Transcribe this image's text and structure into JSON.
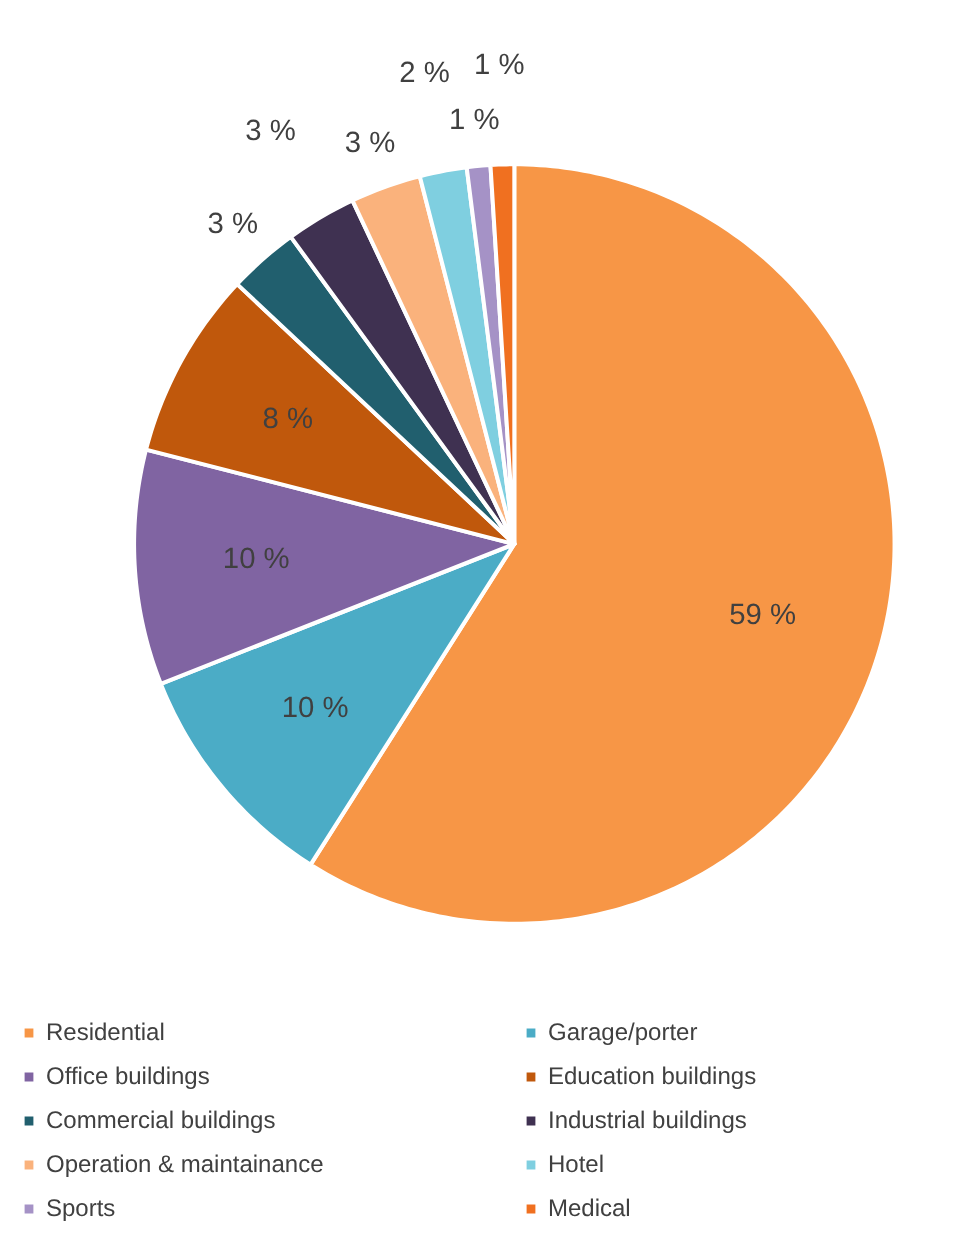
{
  "chart_data": {
    "type": "pie",
    "categories": [
      "Residential",
      "Garage/porter",
      "Office buildings",
      "Education buildings",
      "Commercial buildings",
      "Industrial buildings",
      "Operation & maintainance",
      "Hotel",
      "Sports",
      "Medical"
    ],
    "values": [
      59,
      10,
      10,
      8,
      3,
      3,
      3,
      2,
      1,
      1
    ],
    "colors": [
      "#f79646",
      "#4bacc6",
      "#8064a2",
      "#c0580c",
      "#215f6e",
      "#3f3151",
      "#fab27c",
      "#7fcfe0",
      "#a592c6",
      "#f07020"
    ],
    "value_labels": [
      "59 %",
      "10 %",
      "10 %",
      "8 %",
      "3 %",
      "3 %",
      "3 %",
      "2 %",
      "1 %",
      "1 %"
    ],
    "legend": "bottom"
  }
}
